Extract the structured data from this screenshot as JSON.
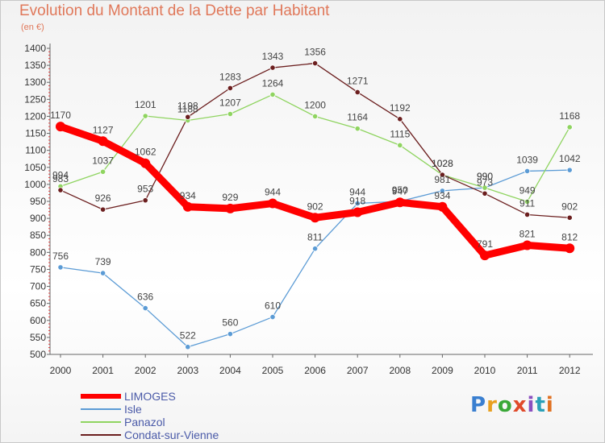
{
  "header": {
    "title": "Evolution du Montant de la Dette par Habitant",
    "subtitle": "(en €)"
  },
  "colors": {
    "title": "#e0785a",
    "LIMOGES": "#ff0000",
    "Isle": "#5b9bd5",
    "Panazol": "#8fd460",
    "Condat-sur-Vienne": "#6b1e1e"
  },
  "logo": {
    "text": "Proxiti"
  },
  "chart_data": {
    "type": "line",
    "title": "Evolution du Montant de la Dette par Habitant",
    "ylabel": "(en €)",
    "xlabel": "",
    "ylim": [
      500,
      1400
    ],
    "yticks": [
      500,
      550,
      600,
      650,
      700,
      750,
      800,
      850,
      900,
      950,
      1000,
      1050,
      1100,
      1150,
      1200,
      1250,
      1300,
      1350,
      1400
    ],
    "categories": [
      "2000",
      "2001",
      "2002",
      "2003",
      "2004",
      "2005",
      "2006",
      "2007",
      "2008",
      "2009",
      "2010",
      "2011",
      "2012"
    ],
    "grid": false,
    "legend": "bottom-left",
    "series": [
      {
        "name": "LIMOGES",
        "color": "#ff0000",
        "values": [
          1170,
          1127,
          1062,
          934,
          929,
          944,
          902,
          918,
          947,
          934,
          791,
          821,
          812
        ]
      },
      {
        "name": "Isle",
        "color": "#5b9bd5",
        "values": [
          756,
          739,
          636,
          522,
          560,
          610,
          811,
          944,
          950,
          981,
          990,
          1039,
          1042
        ]
      },
      {
        "name": "Panazol",
        "color": "#8fd460",
        "values": [
          994,
          1037,
          1201,
          1188,
          1207,
          1264,
          1200,
          1164,
          1115,
          1028,
          990,
          949,
          1168
        ]
      },
      {
        "name": "Condat-sur-Vienne",
        "color": "#6b1e1e",
        "values": [
          983,
          926,
          953,
          1198,
          1283,
          1343,
          1356,
          1271,
          1192,
          1028,
          973,
          911,
          902
        ]
      }
    ]
  }
}
